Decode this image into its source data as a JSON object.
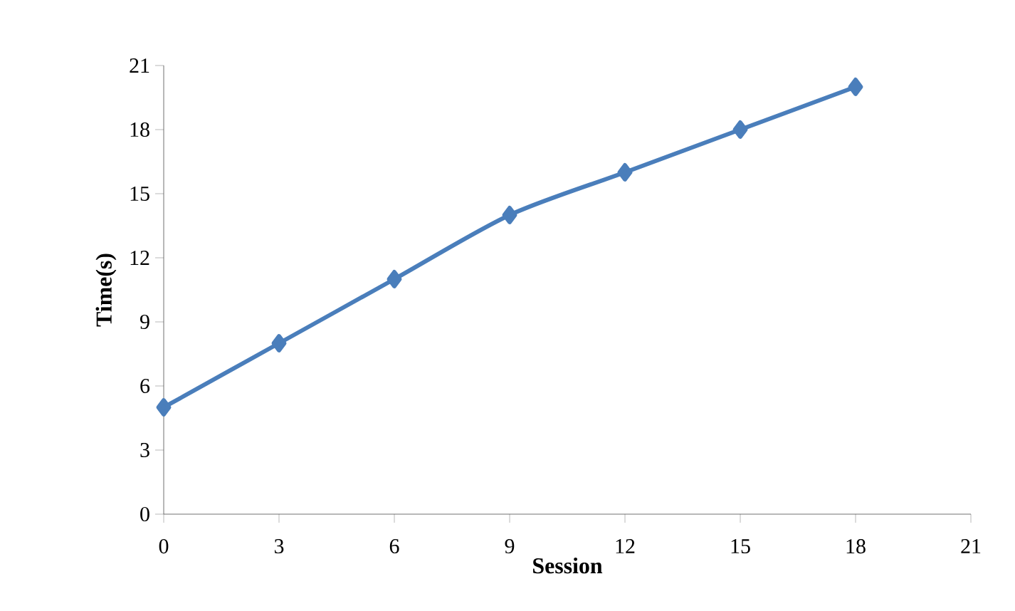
{
  "chart_data": {
    "type": "line",
    "xlabel": "Session",
    "ylabel": "Time(s)",
    "x": [
      0,
      3,
      6,
      9,
      12,
      15,
      18
    ],
    "series": [
      {
        "color": "#4a7ebb",
        "values": [
          5,
          8,
          11,
          14,
          16,
          18,
          20
        ]
      }
    ],
    "xlim": [
      0,
      21
    ],
    "ylim": [
      0,
      21
    ],
    "xticks": [
      0,
      3,
      6,
      9,
      12,
      15,
      18,
      21
    ],
    "yticks": [
      0,
      3,
      6,
      9,
      12,
      15,
      18,
      21
    ],
    "grid": false,
    "marker": "diamond",
    "line_style": "solid"
  }
}
